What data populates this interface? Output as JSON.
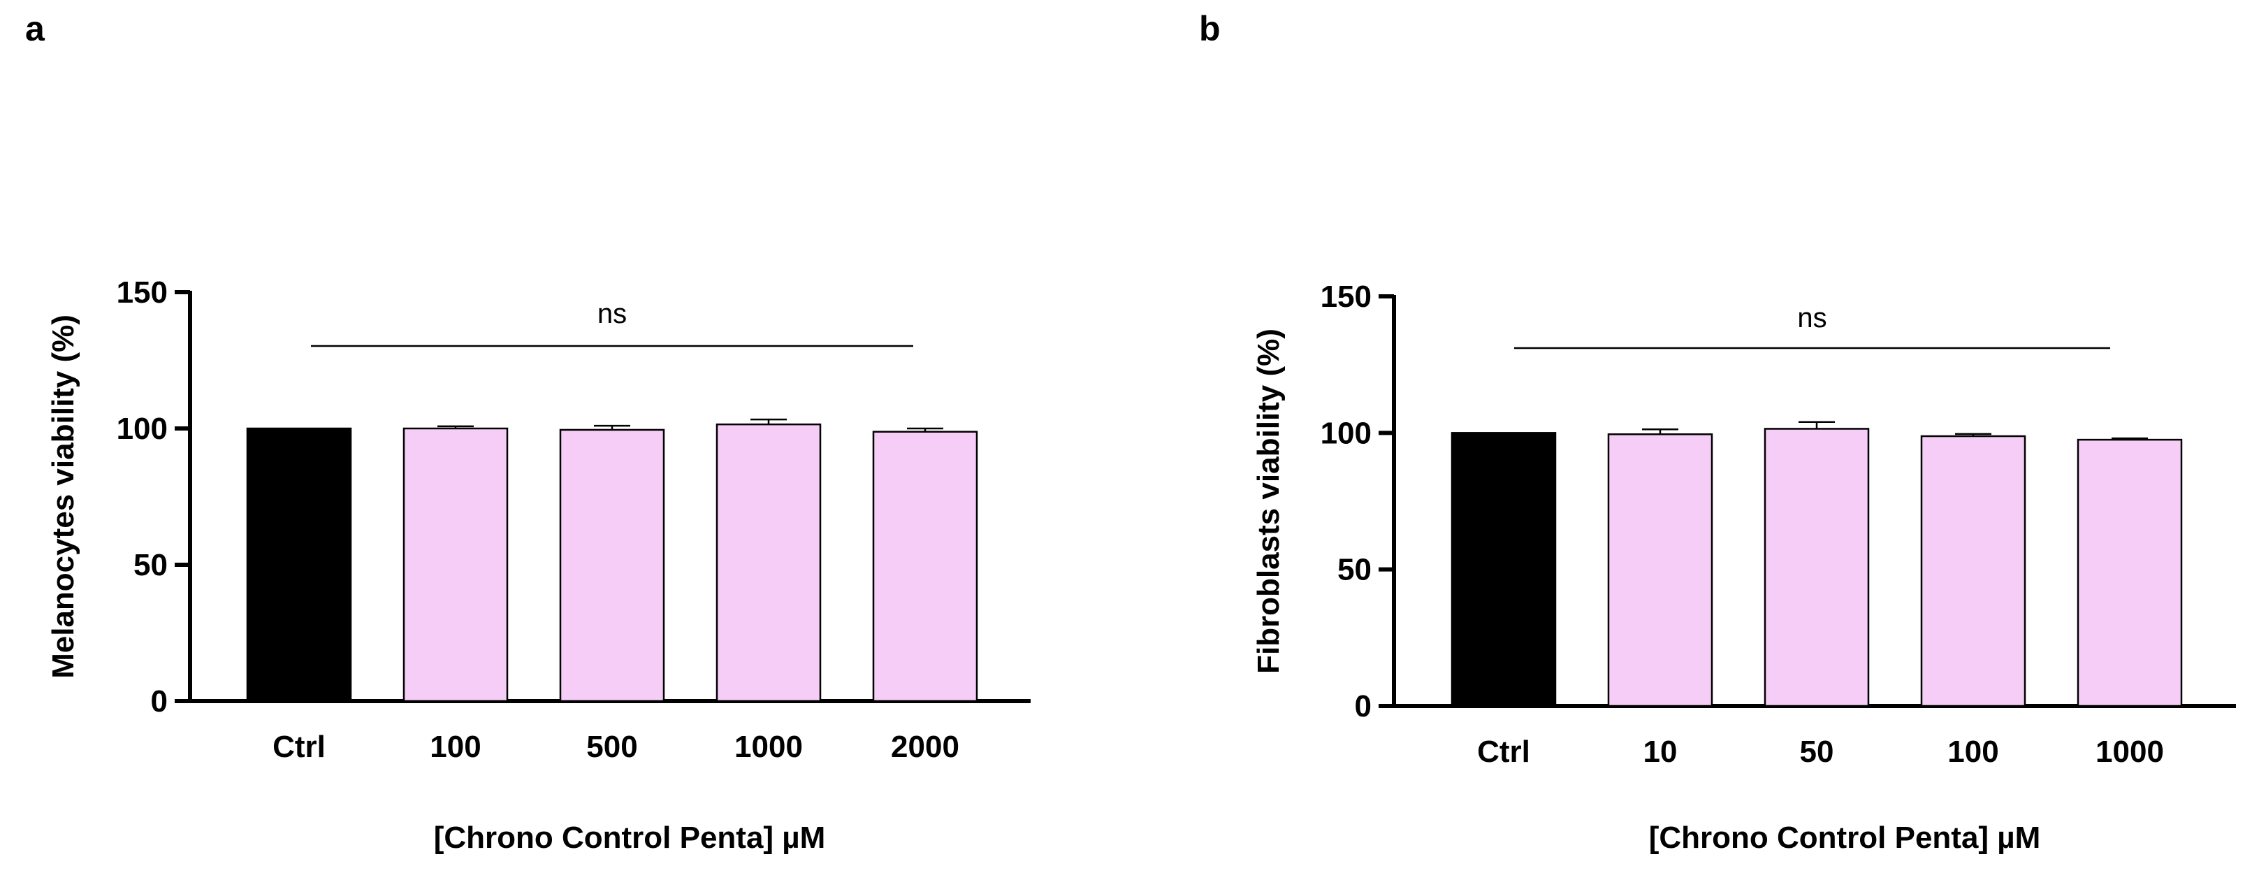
{
  "chart_data": [
    {
      "panel_label": "a",
      "type": "bar",
      "title": "",
      "xlabel": "[Chrono Control Penta] µM",
      "ylabel": "Melanocytes viability (%)",
      "ylim": [
        0,
        150
      ],
      "yticks": [
        0,
        50,
        100,
        150
      ],
      "categories": [
        "Ctrl",
        "100",
        "500",
        "1000",
        "2000"
      ],
      "values": [
        100,
        100,
        99.5,
        101.5,
        98.8
      ],
      "errors": [
        0,
        0.8,
        1.5,
        1.8,
        1.2
      ],
      "bar_colors": [
        "#000000",
        "#f6cdf6",
        "#f6cdf6",
        "#f6cdf6",
        "#f6cdf6"
      ],
      "significance": "ns"
    },
    {
      "panel_label": "b",
      "type": "bar",
      "title": "",
      "xlabel": "[Chrono Control Penta] µM",
      "ylabel": "Fibroblasts viability (%)",
      "ylim": [
        0,
        150
      ],
      "yticks": [
        0,
        50,
        100,
        150
      ],
      "categories": [
        "Ctrl",
        "10",
        "50",
        "100",
        "1000"
      ],
      "values": [
        100,
        99.5,
        101.5,
        98.8,
        97.5
      ],
      "errors": [
        0,
        1.8,
        2.5,
        0.8,
        0.5
      ],
      "bar_colors": [
        "#000000",
        "#f6cdf6",
        "#f6cdf6",
        "#f6cdf6",
        "#f6cdf6"
      ],
      "significance": "ns"
    }
  ]
}
